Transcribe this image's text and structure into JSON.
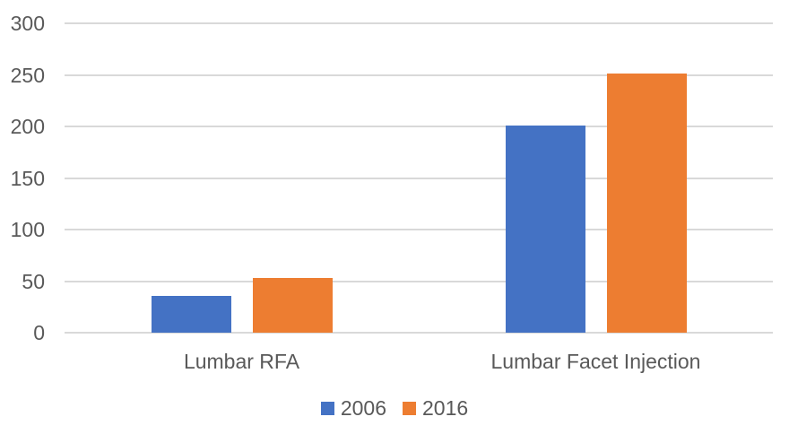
{
  "chart_data": {
    "type": "bar",
    "title": "",
    "xlabel": "",
    "ylabel": "",
    "categories": [
      "Lumbar RFA",
      "Lumbar Facet Injection"
    ],
    "series": [
      {
        "name": "2006",
        "color": "#4472C4",
        "values": [
          36,
          201
        ]
      },
      {
        "name": "2016",
        "color": "#ED7D31",
        "values": [
          53,
          251
        ]
      }
    ],
    "ylim": [
      0,
      300
    ],
    "yticks": [
      0,
      50,
      100,
      150,
      200,
      250,
      300
    ],
    "grid": true,
    "legend_position": "bottom",
    "colors": {
      "gridline": "#D9D9D9",
      "axis_text": "#595959",
      "background": "#FFFFFF"
    }
  }
}
